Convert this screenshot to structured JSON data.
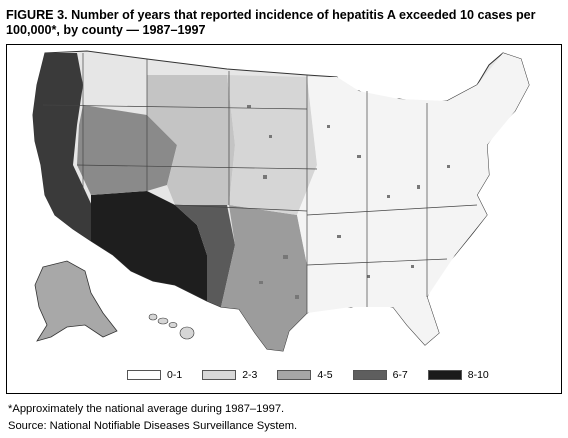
{
  "figure": {
    "title": "FIGURE 3. Number of years that reported incidence of hepatitis A exceeded 10 cases per 100,000*, by county — 1987–1997"
  },
  "legend": {
    "items": [
      {
        "label": "0-1",
        "color": "#ffffff"
      },
      {
        "label": "2-3",
        "color": "#d8d8d8"
      },
      {
        "label": "4-5",
        "color": "#a6a6a6"
      },
      {
        "label": "6-7",
        "color": "#5e5e5e"
      },
      {
        "label": "8-10",
        "color": "#1a1a1a"
      }
    ]
  },
  "footnotes": {
    "asterisk": "*Approximately the national average during 1987–1997.",
    "source": "Source: National Notifiable Diseases Surveillance System."
  }
}
